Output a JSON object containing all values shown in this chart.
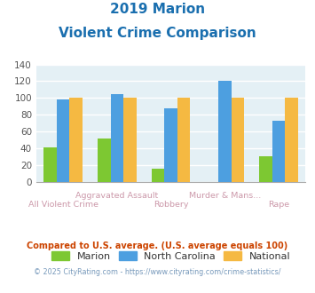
{
  "title_line1": "2019 Marion",
  "title_line2": "Violent Crime Comparison",
  "categories": [
    "All Violent Crime",
    "Aggravated Assault",
    "Robbery",
    "Murder & Mans...",
    "Rape"
  ],
  "series": {
    "Marion": [
      41,
      52,
      16,
      0,
      30
    ],
    "North Carolina": [
      98,
      105,
      88,
      121,
      73
    ],
    "National": [
      100,
      100,
      100,
      100,
      100
    ]
  },
  "colors": {
    "Marion": "#7dc832",
    "North Carolina": "#4d9fe0",
    "National": "#f5b942"
  },
  "ylim": [
    0,
    140
  ],
  "yticks": [
    0,
    20,
    40,
    60,
    80,
    100,
    120,
    140
  ],
  "bar_width": 0.24,
  "plot_bg": "#e4f0f5",
  "fig_bg": "#ffffff",
  "title_color": "#1a6faf",
  "grid_color": "#ffffff",
  "footnote1": "Compared to U.S. average. (U.S. average equals 100)",
  "footnote2": "© 2025 CityRating.com - https://www.cityrating.com/crime-statistics/",
  "footnote1_color": "#cc4400",
  "footnote2_color": "#7799bb",
  "label_color_top": "#cc99aa",
  "label_color_bottom": "#cc99aa"
}
